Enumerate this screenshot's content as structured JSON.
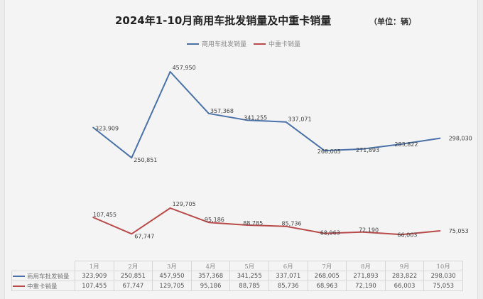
{
  "title": "2024年1-10月商用车批发销量及中重卡销量",
  "unit": "（单位：辆）",
  "colors": {
    "series1": "#4a72a8",
    "series2": "#b84a4a"
  },
  "chart_data": {
    "type": "line",
    "title": "2024年1-10月商用车批发销量及中重卡销量",
    "unit_label": "（单位：辆）",
    "xlabel": "",
    "ylabel": "",
    "categories": [
      "1月",
      "2月",
      "3月",
      "4月",
      "5月",
      "6月",
      "7月",
      "8月",
      "9月",
      "10月"
    ],
    "legend_position": "top",
    "grid": false,
    "series": [
      {
        "name": "商用车批发销量",
        "color": "#4a72a8",
        "values": [
          323909,
          250851,
          457950,
          357368,
          341255,
          337071,
          268005,
          271893,
          283822,
          298030
        ],
        "labels": [
          "323,909",
          "250,851",
          "457,950",
          "357,368",
          "341,255",
          "337,071",
          "268,005",
          "271,893",
          "283,822",
          "298,030"
        ]
      },
      {
        "name": "中重卡销量",
        "color": "#b84a4a",
        "values": [
          107455,
          67747,
          129705,
          95186,
          88785,
          85736,
          68963,
          72190,
          66003,
          75053
        ],
        "labels": [
          "107,455",
          "67,747",
          "129,705",
          "95,186",
          "88,785",
          "85,736",
          "68,963",
          "72,190",
          "66,003",
          "75,053"
        ]
      }
    ],
    "data_table": true
  }
}
